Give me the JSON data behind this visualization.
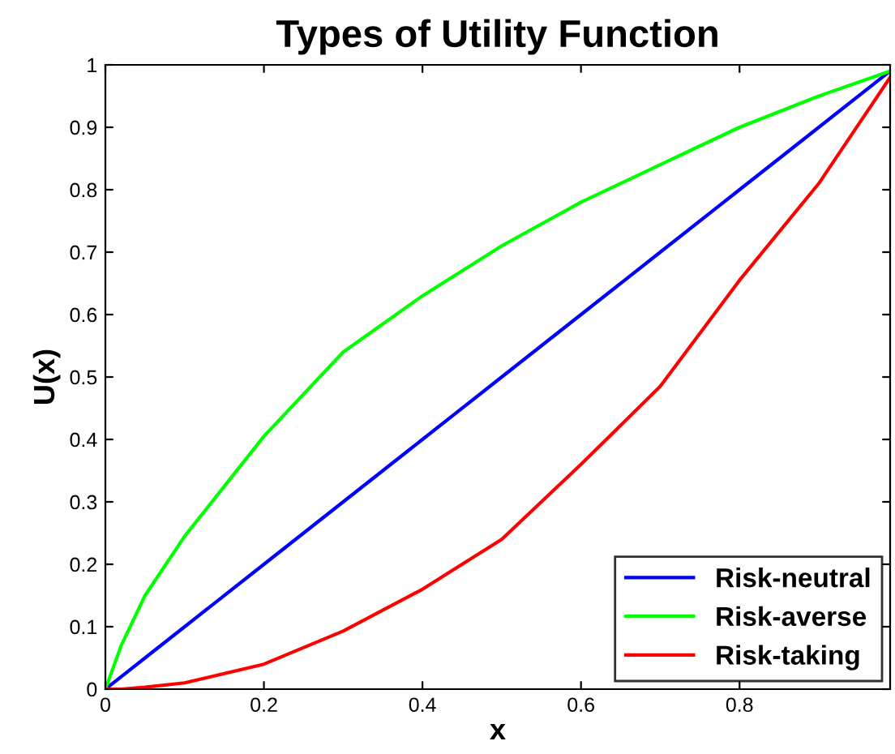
{
  "chart_data": {
    "type": "line",
    "title": "Types of Utility Function",
    "xlabel": "x",
    "ylabel": "U(x)",
    "x": [
      0,
      0.02,
      0.05,
      0.1,
      0.2,
      0.3,
      0.4,
      0.5,
      0.6,
      0.7,
      0.8,
      0.9,
      0.99
    ],
    "series": [
      {
        "name": "Risk-neutral",
        "color": "#0000ff",
        "values": [
          0,
          0.02,
          0.05,
          0.1,
          0.2,
          0.3,
          0.4,
          0.5,
          0.6,
          0.7,
          0.8,
          0.9,
          0.99
        ]
      },
      {
        "name": "Risk-averse",
        "color": "#00ff00",
        "values": [
          0,
          0.07,
          0.15,
          0.245,
          0.405,
          0.54,
          0.63,
          0.71,
          0.78,
          0.84,
          0.9,
          0.95,
          0.99
        ]
      },
      {
        "name": "Risk-taking",
        "color": "#ff0000",
        "values": [
          0,
          0,
          0.003,
          0.01,
          0.04,
          0.093,
          0.16,
          0.24,
          0.36,
          0.485,
          0.655,
          0.81,
          0.98
        ]
      }
    ],
    "xlim": [
      0,
      0.99
    ],
    "ylim": [
      0,
      1
    ],
    "xticks": [
      0,
      0.2,
      0.4,
      0.6,
      0.8
    ],
    "yticks": [
      0,
      0.1,
      0.2,
      0.3,
      0.4,
      0.5,
      0.6,
      0.7,
      0.8,
      0.9,
      1
    ],
    "legend": "bottom right",
    "grid": false
  }
}
